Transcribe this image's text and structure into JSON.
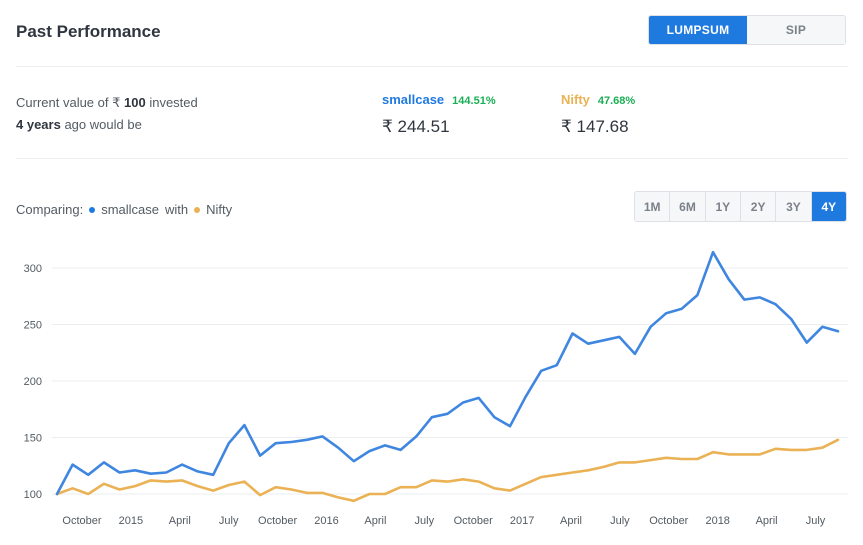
{
  "header": {
    "title": "Past Performance"
  },
  "mode_toggle": {
    "options": [
      "LUMPSUM",
      "SIP"
    ],
    "selected": "LUMPSUM"
  },
  "summary": {
    "line1_prefix": "Current value of ₹",
    "amount": "100",
    "line1_suffix": "invested",
    "period": "4 years",
    "line2_suffix": "ago would be",
    "smallcase": {
      "name": "smallcase",
      "pct": "144.51%",
      "value": "₹ 244.51"
    },
    "nifty": {
      "name": "Nifty",
      "pct": "47.68%",
      "value": "₹ 147.68"
    }
  },
  "comparing": {
    "label": "Comparing:",
    "series_a": "smallcase",
    "with": "with",
    "series_b": "Nifty"
  },
  "ranges": {
    "options": [
      "1M",
      "6M",
      "1Y",
      "2Y",
      "3Y",
      "4Y"
    ],
    "selected": "4Y"
  },
  "colors": {
    "accent": "#1f7ae0",
    "smallcase": "#3f86e0",
    "nifty": "#eab255",
    "positive": "#19af55"
  },
  "chart_data": {
    "type": "line",
    "x_tick_labels": [
      "October",
      "2015",
      "April",
      "July",
      "October",
      "2016",
      "April",
      "July",
      "October",
      "2017",
      "April",
      "July",
      "October",
      "2018",
      "April",
      "July"
    ],
    "y_ticks": [
      100,
      150,
      200,
      250,
      300
    ],
    "ylim": [
      90,
      320
    ],
    "grid": true,
    "series": [
      {
        "name": "smallcase",
        "values": [
          100,
          126,
          117,
          128,
          119,
          121,
          118,
          119,
          126,
          120,
          117,
          145,
          161,
          134,
          145,
          146,
          148,
          151,
          141,
          129,
          138,
          143,
          139,
          151,
          168,
          171,
          181,
          185,
          168,
          160,
          186,
          209,
          214,
          242,
          233,
          236,
          239,
          224,
          248,
          260,
          264,
          276,
          314,
          290,
          272,
          274,
          268,
          255,
          234,
          248,
          244
        ]
      },
      {
        "name": "Nifty",
        "values": [
          100,
          105,
          100,
          109,
          104,
          107,
          112,
          111,
          112,
          107,
          103,
          108,
          111,
          99,
          106,
          104,
          101,
          101,
          97,
          94,
          100,
          100,
          106,
          106,
          112,
          111,
          113,
          111,
          105,
          103,
          109,
          115,
          117,
          119,
          121,
          124,
          128,
          128,
          130,
          132,
          131,
          131,
          137,
          135,
          135,
          135,
          140,
          139,
          139,
          141,
          148
        ]
      }
    ]
  }
}
